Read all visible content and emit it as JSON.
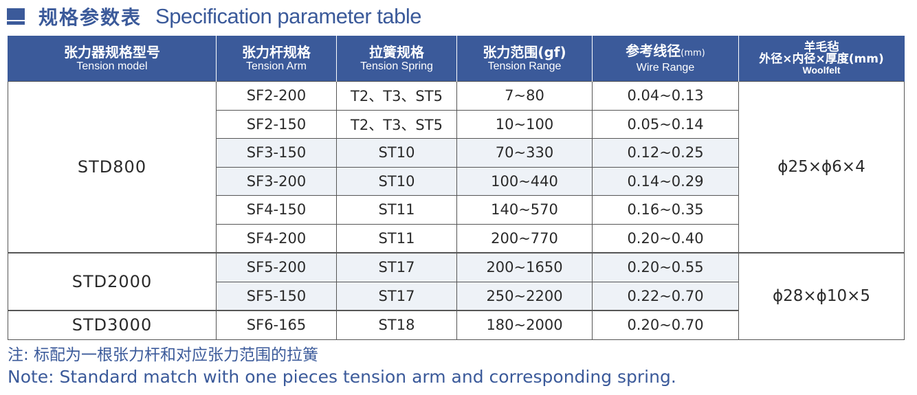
{
  "title": {
    "cn": "规格参数表",
    "en": "Specification parameter table"
  },
  "headers": [
    {
      "cn": "张力器规格型号",
      "en": "Tension model"
    },
    {
      "cn": "张力杆规格",
      "en": "Tension Arm"
    },
    {
      "cn": "拉簧规格",
      "en": "Tension Spring"
    },
    {
      "cn": "张力范围(gf)",
      "en": "Tension Range"
    },
    {
      "cn": "参考线径",
      "cn_unit": "(mm)",
      "en": "Wire Range"
    },
    {
      "cn_line1": "羊毛毡",
      "cn_line2": "外径×内径×厚度(mm)",
      "en": "Woolfelt"
    }
  ],
  "groups": [
    {
      "model": "STD800",
      "felt": "ϕ25×ϕ6×4"
    },
    {
      "model": "STD2000",
      "felt": "ϕ28×ϕ10×5"
    },
    {
      "model": "STD3000"
    }
  ],
  "rows": [
    {
      "arm": "SF2-200",
      "spring": "T2、T3、ST5",
      "range": "7~80",
      "wire": "0.04~0.13"
    },
    {
      "arm": "SF2-150",
      "spring": "T2、T3、ST5",
      "range": "10~100",
      "wire": "0.05~0.14"
    },
    {
      "arm": "SF3-150",
      "spring": "ST10",
      "range": "70~330",
      "wire": "0.12~0.25"
    },
    {
      "arm": "SF3-200",
      "spring": "ST10",
      "range": "100~440",
      "wire": "0.14~0.29"
    },
    {
      "arm": "SF4-150",
      "spring": "ST11",
      "range": "140~570",
      "wire": "0.16~0.35"
    },
    {
      "arm": "SF4-200",
      "spring": "ST11",
      "range": "200~770",
      "wire": "0.20~0.40"
    },
    {
      "arm": "SF5-200",
      "spring": "ST17",
      "range": "200~1650",
      "wire": "0.20~0.55"
    },
    {
      "arm": "SF5-150",
      "spring": "ST17",
      "range": "250~2200",
      "wire": "0.22~0.70"
    },
    {
      "arm": "SF6-165",
      "spring": "ST18",
      "range": "180~2000",
      "wire": "0.20~0.70"
    }
  ],
  "note": {
    "cn": "注: 标配为一根张力杆和对应张力范围的拉簧",
    "en": "Note: Standard match with one pieces tension arm and corresponding spring."
  },
  "colors": {
    "accent": "#3b5a9a",
    "row_shade": "#eef2f7"
  }
}
